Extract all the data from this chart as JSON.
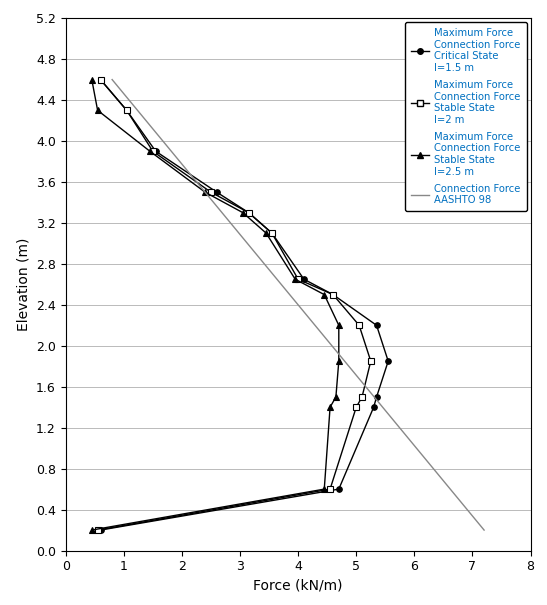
{
  "xlabel": "Force (kN/m)",
  "ylabel": "Elevation (m)",
  "xlim": [
    0,
    8
  ],
  "ylim": [
    0,
    5.2
  ],
  "xticks": [
    0,
    1,
    2,
    3,
    4,
    5,
    6,
    7,
    8
  ],
  "yticks": [
    0,
    0.4,
    0.8,
    1.2,
    1.6,
    2.0,
    2.4,
    2.8,
    3.2,
    3.6,
    4.0,
    4.4,
    4.8,
    5.2
  ],
  "line1": {
    "label": "Maximum Force\nConnection Force\nCritical State\nl=1.5 m",
    "marker": "o",
    "mfc": "black",
    "x": [
      0.6,
      1.05,
      1.55,
      2.6,
      3.15,
      3.55,
      4.1,
      4.6,
      5.35,
      5.55,
      5.35,
      5.3,
      4.7,
      0.6
    ],
    "y": [
      4.6,
      4.3,
      3.9,
      3.5,
      3.3,
      3.1,
      2.65,
      2.5,
      2.2,
      1.85,
      1.5,
      1.4,
      0.6,
      0.2
    ]
  },
  "line2": {
    "label": "Maximum Force\nConnection Force\nStable State\nl=2 m",
    "marker": "s",
    "mfc": "white",
    "x": [
      0.6,
      1.05,
      1.5,
      2.5,
      3.15,
      3.55,
      4.0,
      4.6,
      5.05,
      5.25,
      5.1,
      5.0,
      4.55,
      0.55
    ],
    "y": [
      4.6,
      4.3,
      3.9,
      3.5,
      3.3,
      3.1,
      2.65,
      2.5,
      2.2,
      1.85,
      1.5,
      1.4,
      0.6,
      0.2
    ]
  },
  "line3": {
    "label": "Maximum Force\nConnection Force\nStable State\nl=2.5 m",
    "marker": "^",
    "mfc": "black",
    "x": [
      0.45,
      0.55,
      1.45,
      2.4,
      3.05,
      3.45,
      3.95,
      4.45,
      4.7,
      4.7,
      4.65,
      4.55,
      4.45,
      0.45
    ],
    "y": [
      4.6,
      4.3,
      3.9,
      3.5,
      3.3,
      3.1,
      2.65,
      2.5,
      2.2,
      1.85,
      1.5,
      1.4,
      0.6,
      0.2
    ]
  },
  "line4": {
    "label": "Connection Force\nAASHTO 98",
    "color": "#888888",
    "x": [
      0.8,
      7.2
    ],
    "y": [
      4.6,
      0.2
    ]
  },
  "legend_text_color": "#0070c0",
  "bg_color": "#ffffff",
  "grid_color": "#b0b0b0",
  "line_color": "#000000"
}
